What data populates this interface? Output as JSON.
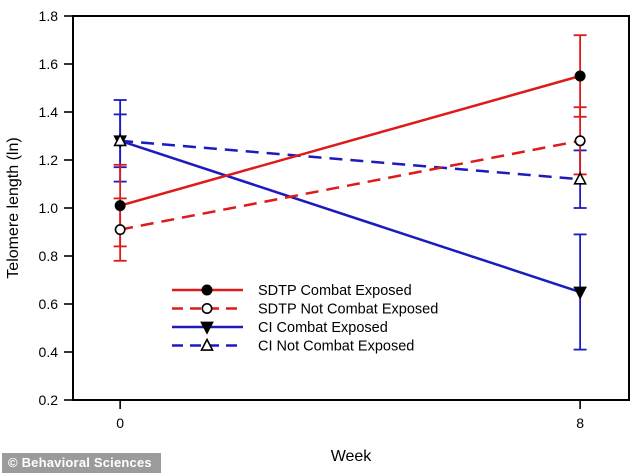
{
  "figure": {
    "watermark": "© Behavioral Sciences",
    "background": "#ffffff",
    "frame_color": "#000000"
  },
  "chart_data": {
    "type": "line",
    "title": "",
    "xlabel": "Week",
    "ylabel": "Telomere length (ln)",
    "x": [
      0,
      8
    ],
    "x_tick_labels": [
      "0",
      "8"
    ],
    "xlim": [
      -0.82,
      8.85
    ],
    "ylim": [
      0.2,
      1.8
    ],
    "y_ticks": [
      0.2,
      0.4,
      0.6,
      0.8,
      1.0,
      1.2,
      1.4,
      1.6,
      1.8
    ],
    "grid": false,
    "legend_position": "inside-lower-left",
    "series": [
      {
        "name": "SDTP Combat Exposed",
        "color": "#de1b1b",
        "line_style": "solid",
        "marker": "circle-filled",
        "marker_color": "#000000",
        "values": [
          1.01,
          1.55
        ],
        "errors": [
          0.17,
          0.17
        ]
      },
      {
        "name": "SDTP Not Combat Exposed",
        "color": "#de1b1b",
        "line_style": "dashed",
        "marker": "circle-open",
        "marker_color": "#000000",
        "values": [
          0.91,
          1.28
        ],
        "errors": [
          0.13,
          0.14
        ]
      },
      {
        "name": "CI Combat Exposed",
        "color": "#1c1cbe",
        "line_style": "solid",
        "marker": "triangle-down-filled",
        "marker_color": "#000000",
        "values": [
          1.28,
          0.65
        ],
        "errors": [
          0.17,
          0.24
        ]
      },
      {
        "name": "CI Not Combat Exposed",
        "color": "#1c1cbe",
        "line_style": "dashed",
        "marker": "triangle-up-open",
        "marker_color": "#000000",
        "values": [
          1.28,
          1.12
        ],
        "errors": [
          0.11,
          0.12
        ]
      }
    ]
  }
}
